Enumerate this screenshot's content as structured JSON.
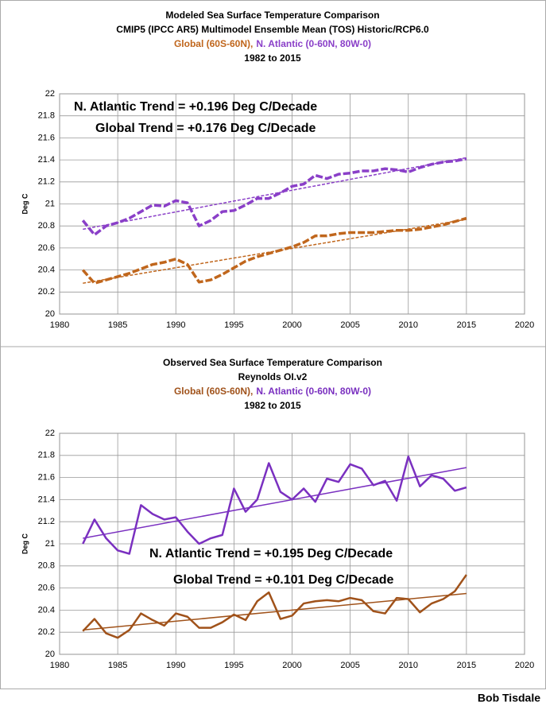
{
  "chart_data": [
    {
      "type": "line",
      "title": "Modeled Sea Surface Temperature Comparison",
      "subtitle": "CMIP5 (IPCC AR5) Multimodel Ensemble Mean (TOS) Historic/RCP6.0",
      "period": "1982 to 2015",
      "y_label": "Deg C",
      "dashed": true,
      "grid": true,
      "x": [
        1982,
        1983,
        1984,
        1985,
        1986,
        1987,
        1988,
        1989,
        1990,
        1991,
        1992,
        1993,
        1994,
        1995,
        1996,
        1997,
        1998,
        1999,
        2000,
        2001,
        2002,
        2003,
        2004,
        2005,
        2006,
        2007,
        2008,
        2009,
        2010,
        2011,
        2012,
        2013,
        2014,
        2015
      ],
      "xlim": [
        1980,
        2020
      ],
      "xticks": [
        1980,
        1985,
        1990,
        1995,
        2000,
        2005,
        2010,
        2015,
        2020
      ],
      "ylim": [
        20,
        22
      ],
      "yticks": [
        20,
        20.2,
        20.4,
        20.6,
        20.8,
        21,
        21.2,
        21.4,
        21.6,
        21.8,
        22
      ],
      "series": [
        {
          "name": "Global (60S-60N),",
          "color": "#c0661c",
          "values": [
            20.4,
            20.28,
            20.31,
            20.34,
            20.37,
            20.41,
            20.45,
            20.47,
            20.5,
            20.45,
            20.29,
            20.31,
            20.36,
            20.42,
            20.48,
            20.52,
            20.55,
            20.58,
            20.61,
            20.65,
            20.71,
            20.71,
            20.73,
            20.74,
            20.74,
            20.74,
            20.75,
            20.76,
            20.76,
            20.77,
            20.79,
            20.81,
            20.84,
            20.87
          ],
          "trend": {
            "x": [
              1982,
              2015
            ],
            "values": [
              20.28,
              20.86
            ]
          },
          "trend_label": "Global Trend = +0.176 Deg C/Decade"
        },
        {
          "name": "N. Atlantic (0-60N, 80W-0)",
          "color": "#8a3fc8",
          "values": [
            20.85,
            20.72,
            20.8,
            20.83,
            20.87,
            20.93,
            20.99,
            20.98,
            21.03,
            21.01,
            20.8,
            20.85,
            20.93,
            20.94,
            20.99,
            21.05,
            21.05,
            21.1,
            21.16,
            21.18,
            21.26,
            21.23,
            21.27,
            21.28,
            21.3,
            21.3,
            21.32,
            21.31,
            21.29,
            21.33,
            21.36,
            21.38,
            21.39,
            21.41
          ],
          "trend": {
            "x": [
              1982,
              2015
            ],
            "values": [
              20.77,
              21.42
            ]
          },
          "trend_label": "N. Atlantic Trend = +0.196 Deg C/Decade"
        }
      ]
    },
    {
      "type": "line",
      "title": "Observed Sea Surface Temperature Comparison",
      "subtitle": "Reynolds OI.v2",
      "period": "1982 to 2015",
      "y_label": "Deg C",
      "dashed": false,
      "grid": true,
      "x": [
        1982,
        1983,
        1984,
        1985,
        1986,
        1987,
        1988,
        1989,
        1990,
        1991,
        1992,
        1993,
        1994,
        1995,
        1996,
        1997,
        1998,
        1999,
        2000,
        2001,
        2002,
        2003,
        2004,
        2005,
        2006,
        2007,
        2008,
        2009,
        2010,
        2011,
        2012,
        2013,
        2014,
        2015
      ],
      "xlim": [
        1980,
        2020
      ],
      "xticks": [
        1980,
        1985,
        1990,
        1995,
        2000,
        2005,
        2010,
        2015,
        2020
      ],
      "ylim": [
        20,
        22
      ],
      "yticks": [
        20,
        20.2,
        20.4,
        20.6,
        20.8,
        21,
        21.2,
        21.4,
        21.6,
        21.8,
        22
      ],
      "series": [
        {
          "name": "Global (60S-60N),",
          "color": "#a0521a",
          "values": [
            20.21,
            20.32,
            20.19,
            20.15,
            20.22,
            20.37,
            20.31,
            20.26,
            20.37,
            20.34,
            20.24,
            20.24,
            20.29,
            20.36,
            20.31,
            20.48,
            20.56,
            20.32,
            20.35,
            20.46,
            20.48,
            20.49,
            20.48,
            20.51,
            20.49,
            20.39,
            20.37,
            20.51,
            20.5,
            20.38,
            20.46,
            20.5,
            20.57,
            20.72
          ],
          "trend": {
            "x": [
              1982,
              2015
            ],
            "values": [
              20.22,
              20.55
            ]
          },
          "trend_label": "Global Trend = +0.101 Deg C/Decade"
        },
        {
          "name": "N. Atlantic (0-60N, 80W-0)",
          "color": "#7a30c0",
          "values": [
            21.0,
            21.22,
            21.05,
            20.94,
            20.91,
            21.35,
            21.27,
            21.22,
            21.24,
            21.11,
            21.0,
            21.05,
            21.08,
            21.5,
            21.29,
            21.4,
            21.73,
            21.47,
            21.4,
            21.5,
            21.38,
            21.59,
            21.56,
            21.72,
            21.68,
            21.53,
            21.57,
            21.39,
            21.79,
            21.52,
            21.62,
            21.59,
            21.48,
            21.51
          ],
          "trend": {
            "x": [
              1982,
              2015
            ],
            "values": [
              21.05,
              21.69
            ]
          },
          "trend_label": "N. Atlantic Trend = +0.195 Deg C/Decade"
        }
      ]
    }
  ],
  "credit": "Bob Tisdale"
}
